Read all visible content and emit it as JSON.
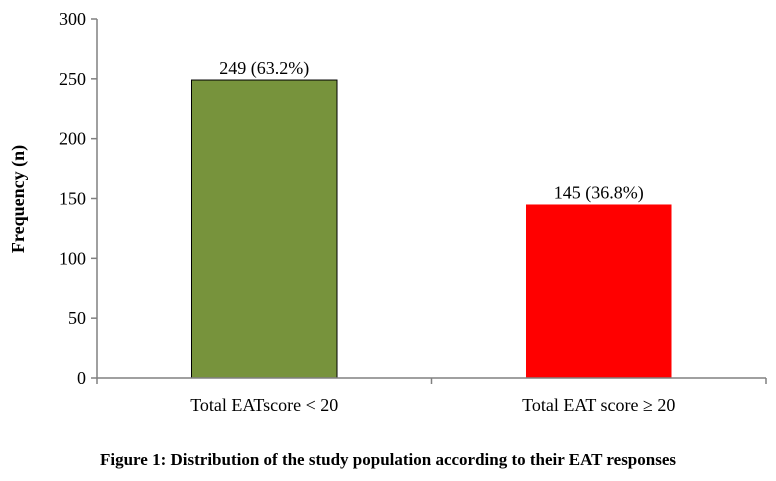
{
  "chart_data": {
    "type": "bar",
    "categories": [
      "Total EATscore < 20",
      "Total EAT score ≥ 20"
    ],
    "values": [
      249,
      145
    ],
    "data_labels": [
      "249 (63.2%)",
      "145 (36.8%)"
    ],
    "bar_colors": [
      "#77933c",
      "#ff0000"
    ],
    "title": "",
    "xlabel": "",
    "ylabel": "Frequency (n)",
    "ylim": [
      0,
      300
    ],
    "yticks": [
      0,
      50,
      100,
      150,
      200,
      250,
      300
    ],
    "grid": false,
    "legend": "none"
  },
  "caption": "Figure 1: Distribution of the study population according to their EAT responses"
}
